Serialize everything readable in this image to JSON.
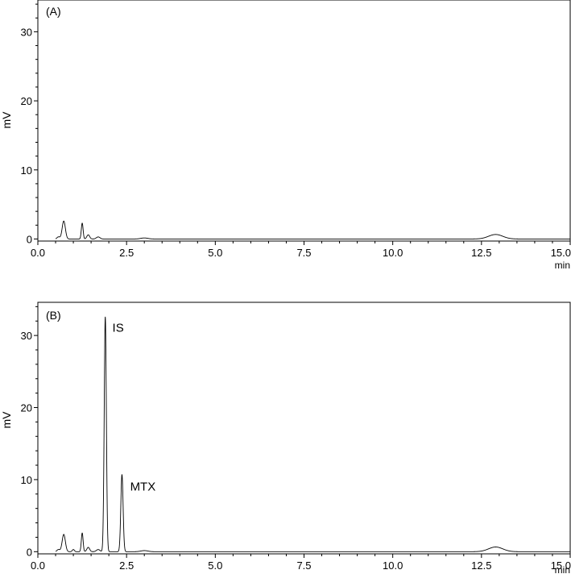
{
  "chart_data": [
    {
      "type": "line",
      "panel_label": "(A)",
      "xunit": "min",
      "ylabel": "mV",
      "xlim": [
        0,
        15
      ],
      "ylim": [
        -0.3,
        34.6
      ],
      "xticks": [
        "0.0",
        "2.5",
        "5.0",
        "7.5",
        "10.0",
        "12.5",
        "15.0"
      ],
      "yticks": [
        "0",
        "10",
        "20",
        "30"
      ],
      "grid": false,
      "annotations": [],
      "series": [
        {
          "peaks": [
            {
              "t": 0.58,
              "h": 0.3,
              "w": 0.04
            },
            {
              "t": 0.73,
              "h": 2.6,
              "w": 0.045
            },
            {
              "t": 1.25,
              "h": 2.3,
              "w": 0.025
            },
            {
              "t": 1.42,
              "h": 0.6,
              "w": 0.04
            },
            {
              "t": 1.7,
              "h": 0.3,
              "w": 0.05
            },
            {
              "t": 3.0,
              "h": 0.15,
              "w": 0.1
            },
            {
              "t": 12.9,
              "h": 0.65,
              "w": 0.2
            }
          ]
        }
      ]
    },
    {
      "type": "line",
      "panel_label": "(B)",
      "xunit": "min",
      "ylabel": "mV",
      "xlim": [
        0,
        15
      ],
      "ylim": [
        -0.3,
        34.6
      ],
      "xticks": [
        "0.0",
        "2.5",
        "5.0",
        "7.5",
        "10.0",
        "12.5",
        "15.0"
      ],
      "yticks": [
        "0",
        "10",
        "20",
        "30"
      ],
      "grid": false,
      "annotations": [
        {
          "text": "IS",
          "x": 2.1,
          "y": 30.5
        },
        {
          "text": "MTX",
          "x": 2.6,
          "y": 8.5
        }
      ],
      "series": [
        {
          "peaks": [
            {
              "t": 0.58,
              "h": 0.3,
              "w": 0.04
            },
            {
              "t": 0.73,
              "h": 2.4,
              "w": 0.045
            },
            {
              "t": 1.0,
              "h": 0.3,
              "w": 0.03
            },
            {
              "t": 1.25,
              "h": 2.6,
              "w": 0.025
            },
            {
              "t": 1.42,
              "h": 0.6,
              "w": 0.04
            },
            {
              "t": 1.7,
              "h": 0.3,
              "w": 0.05
            },
            {
              "t": 1.9,
              "h": 32.6,
              "w": 0.03
            },
            {
              "t": 2.37,
              "h": 10.7,
              "w": 0.032
            },
            {
              "t": 3.0,
              "h": 0.15,
              "w": 0.1
            },
            {
              "t": 12.9,
              "h": 0.65,
              "w": 0.2
            }
          ]
        }
      ]
    }
  ]
}
